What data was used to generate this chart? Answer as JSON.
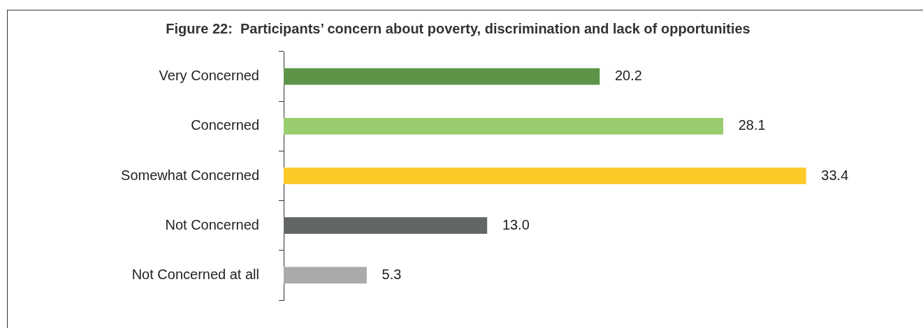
{
  "chart_data": {
    "type": "bar",
    "orientation": "horizontal",
    "title": "Figure 22:  Participants’ concern about poverty, discrimination and lack of opportunities",
    "categories": [
      "Very Concerned",
      "Concerned",
      "Somewhat Concerned",
      "Not Concerned",
      "Not Concerned at all"
    ],
    "values": [
      20.2,
      28.1,
      33.4,
      13.0,
      5.3
    ],
    "colors": [
      "#5c9547",
      "#99cc6f",
      "#fcc926",
      "#636666",
      "#a9aaab"
    ],
    "value_labels": [
      "20.2",
      "28.1",
      "33.4",
      "13.0",
      "5.3"
    ],
    "tick_labels": "y",
    "legend": false
  }
}
